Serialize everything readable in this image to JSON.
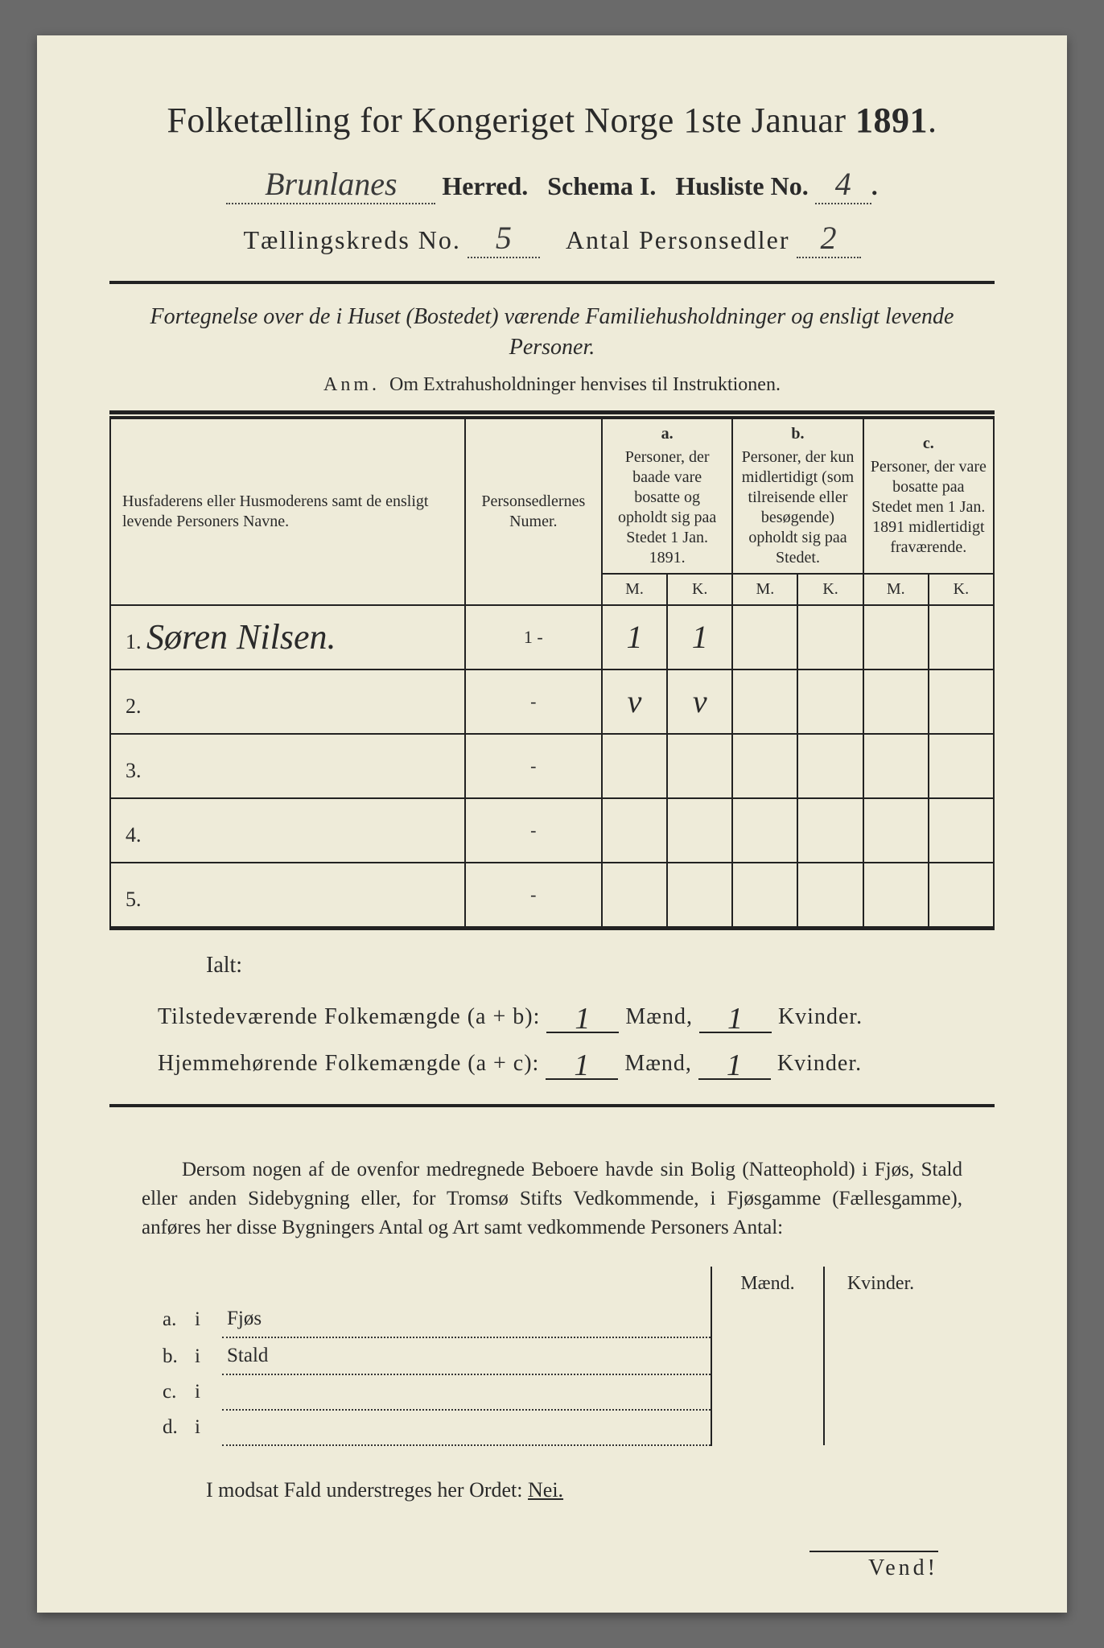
{
  "title": {
    "text_prefix": "Folketælling for Kongeriget Norge 1ste Januar ",
    "year": "1891",
    "suffix": "."
  },
  "header": {
    "parish_handwritten": "Brunlanes",
    "herred_label": "Herred.",
    "schema_label": "Schema I.",
    "husliste_label": "Husliste No.",
    "husliste_no": "4",
    "kreds_label": "Tællingskreds No.",
    "kreds_no": "5",
    "antal_label": "Antal Personsedler",
    "antal_no": "2"
  },
  "subtitle": "Fortegnelse over de i Huset (Bostedet) værende Familiehusholdninger og ensligt levende Personer.",
  "anm": {
    "label": "Anm.",
    "text": "Om Extrahusholdninger henvises til Instruktionen."
  },
  "table": {
    "col_names": "Husfaderens eller Husmoderens samt de ensligt levende Personers Navne.",
    "col_num": "Personsedlernes Numer.",
    "col_a_letter": "a.",
    "col_a": "Personer, der baade vare bosatte og opholdt sig paa Stedet 1 Jan. 1891.",
    "col_b_letter": "b.",
    "col_b": "Personer, der kun midlertidigt (som tilreisende eller besøgende) opholdt sig paa Stedet.",
    "col_c_letter": "c.",
    "col_c": "Personer, der vare bosatte paa Stedet men 1 Jan. 1891 midlertidigt fraværende.",
    "mk_m": "M.",
    "mk_k": "K.",
    "rows": [
      {
        "n": "1.",
        "name": "Søren Nilsen.",
        "num": "1 -",
        "a_m": "1",
        "a_k": "1",
        "b_m": "",
        "b_k": "",
        "c_m": "",
        "c_k": ""
      },
      {
        "n": "2.",
        "name": "",
        "num": "-",
        "a_m": "v",
        "a_k": "v",
        "b_m": "",
        "b_k": "",
        "c_m": "",
        "c_k": ""
      },
      {
        "n": "3.",
        "name": "",
        "num": "-",
        "a_m": "",
        "a_k": "",
        "b_m": "",
        "b_k": "",
        "c_m": "",
        "c_k": ""
      },
      {
        "n": "4.",
        "name": "",
        "num": "-",
        "a_m": "",
        "a_k": "",
        "b_m": "",
        "b_k": "",
        "c_m": "",
        "c_k": ""
      },
      {
        "n": "5.",
        "name": "",
        "num": "-",
        "a_m": "",
        "a_k": "",
        "b_m": "",
        "b_k": "",
        "c_m": "",
        "c_k": ""
      }
    ]
  },
  "ialt": "Ialt:",
  "summary": {
    "line1_label": "Tilstedeværende Folkemængde (a + b):",
    "line2_label": "Hjemmehørende Folkemængde (a + c):",
    "maend": "Mænd,",
    "kvinder": "Kvinder.",
    "tick": "1"
  },
  "para": "Dersom nogen af de ovenfor medregnede Beboere havde sin Bolig (Natteophold) i Fjøs, Stald eller anden Sidebygning eller, for Tromsø Stifts Vedkommende, i Fjøsgamme (Fællesgamme), anføres her disse Bygningers Antal og Art samt vedkommende Personers Antal:",
  "sub": {
    "maend": "Mænd.",
    "kvinder": "Kvinder.",
    "rows": [
      {
        "l": "a.",
        "i": "i",
        "t": "Fjøs"
      },
      {
        "l": "b.",
        "i": "i",
        "t": "Stald"
      },
      {
        "l": "c.",
        "i": "i",
        "t": ""
      },
      {
        "l": "d.",
        "i": "i",
        "t": ""
      }
    ]
  },
  "neg": {
    "prefix": "I modsat Fald understreges her Ordet: ",
    "word": "Nei."
  },
  "vend": "Vend!"
}
